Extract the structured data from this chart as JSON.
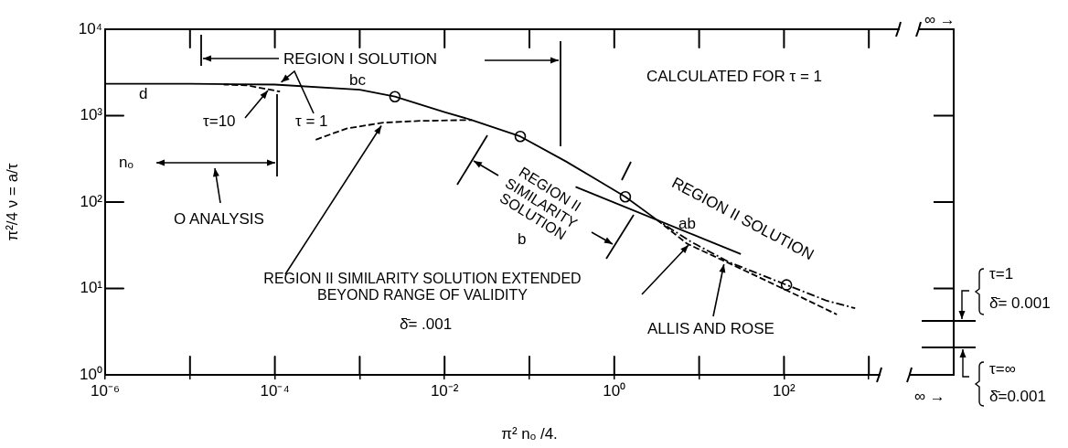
{
  "chart_data": {
    "type": "line",
    "xlabel": "π² nₒ /4.",
    "ylabel": "π²/4 ν = a/τ",
    "log": "xy",
    "xlim": [
      1e-06,
      10000
    ],
    "xticks": [
      {
        "value": 1e-06,
        "label": "10⁻⁶"
      },
      {
        "value": 1e-05,
        "label": null
      },
      {
        "value": 0.0001,
        "label": "10⁻⁴"
      },
      {
        "value": 0.001,
        "label": null
      },
      {
        "value": 0.01,
        "label": "10⁻²"
      },
      {
        "value": 0.1,
        "label": null
      },
      {
        "value": 1,
        "label": "10⁰"
      },
      {
        "value": 10,
        "label": null
      },
      {
        "value": 100,
        "label": "10²"
      },
      {
        "value": 1000,
        "label": null
      }
    ],
    "ylim": [
      1,
      10000
    ],
    "yticks": [
      {
        "value": 1,
        "label": "10⁰"
      },
      {
        "value": 10,
        "label": "10¹"
      },
      {
        "value": 100,
        "label": "10²"
      },
      {
        "value": 1000,
        "label": "10³"
      },
      {
        "value": 10000,
        "label": "10⁴"
      }
    ],
    "series": [
      {
        "type": "line",
        "color": "#000000",
        "line_style": "solid",
        "x": [
          1e-06,
          1e-05,
          0.0001,
          0.001,
          0.0026,
          0.01,
          0.021,
          0.078,
          0.27,
          0.62,
          1.35,
          3.2
        ],
        "values": [
          2340,
          2340,
          2290,
          2000,
          1660,
          1100,
          890,
          575,
          295,
          182,
          115,
          62
        ]
      },
      {
        "type": "line",
        "color": "#000000",
        "line_style": "dashed",
        "x": [
          2.5e-05,
          4.7e-05,
          0.000115
        ],
        "values": [
          2290,
          2240,
          1900
        ]
      },
      {
        "type": "line",
        "color": "#000000",
        "line_style": "dashed",
        "x": [
          0.0003,
          0.0007,
          0.0019,
          0.0051,
          0.0138,
          0.021
        ],
        "values": [
          525,
          710,
          830,
          870,
          885,
          890
        ]
      },
      {
        "type": "line",
        "color": "#000000",
        "line_style": "solid",
        "x": [
          0.35,
          31
        ],
        "values": [
          150,
          25
        ]
      },
      {
        "type": "line",
        "color": "#000000",
        "line_style": "dashed",
        "x": [
          3.2,
          7.2,
          35,
          160,
          420
        ],
        "values": [
          62,
          33,
          16,
          7.9,
          5
        ]
      },
      {
        "type": "line",
        "color": "#000000",
        "line_style": "dashdot",
        "x": [
          3.2,
          7.9,
          23,
          107,
          320,
          690
        ],
        "values": [
          62,
          35,
          20,
          11,
          7.2,
          5.9
        ]
      },
      {
        "type": "scatter",
        "color": "#000000",
        "marker": "circle",
        "x": [
          0.0026,
          0.078,
          1.35,
          107
        ],
        "values": [
          1660,
          575,
          115,
          11
        ]
      }
    ],
    "annotations": [
      "REGION I SOLUTION",
      "CALCULATED FOR τ = 1",
      "bc",
      "d",
      "τ=10",
      {
        "text": "τ = 1",
        "x": 0.00011,
        "y": 2290
      },
      "nₒ",
      "O ANALYSIS",
      "REGION II SIMILARITY SOLUTION",
      "b",
      "REGION II SOLUTION",
      "ab",
      {
        "text": "REGION II SIMILARITY SOLUTION EXTENDED BEYOND RANGE OF VALIDITY",
        "x": 0.0019,
        "y": 830
      },
      "δ̄= .001",
      {
        "text": "ALLIS AND ROSE",
        "x": 20,
        "y": 21
      },
      "τ=1",
      "δ̄= 0.001",
      "τ=∞",
      "δ̄=0.001",
      "∞ →",
      "∞ →"
    ]
  }
}
